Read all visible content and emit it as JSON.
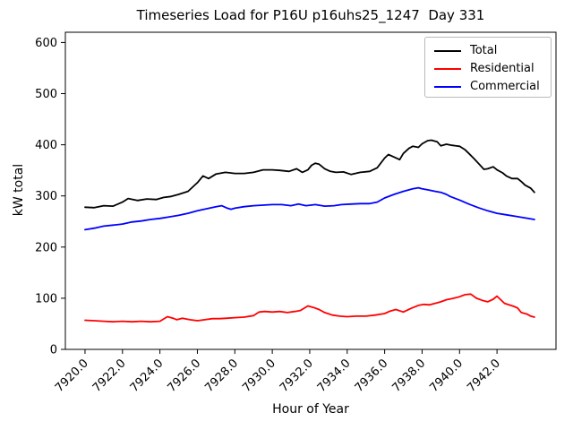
{
  "title": "Timeseries Load for P16U p16uhs25_1247  Day 331",
  "xlabel": "Hour of Year",
  "ylabel": "kW total",
  "legend": [
    {
      "label": "Total",
      "color": "#000000"
    },
    {
      "label": "Residential",
      "color": "#ff0000"
    },
    {
      "label": "Commercial",
      "color": "#0000ff"
    }
  ],
  "chart_data": {
    "type": "line",
    "title": "Timeseries Load for P16U p16uhs25_1247  Day 331",
    "xlabel": "Hour of Year",
    "ylabel": "kW total",
    "xlim": [
      7918.95,
      7945.15
    ],
    "ylim": [
      0,
      620
    ],
    "grid": false,
    "legend_position": "upper right",
    "x_ticks": [
      7920,
      7922,
      7924,
      7926,
      7928,
      7930,
      7932,
      7934,
      7936,
      7938,
      7940,
      7942
    ],
    "x_tick_labels": [
      "7920.0",
      "7922.0",
      "7924.0",
      "7926.0",
      "7928.0",
      "7930.0",
      "7932.0",
      "7934.0",
      "7936.0",
      "7938.0",
      "7940.0",
      "7942.0"
    ],
    "y_ticks": [
      0,
      100,
      200,
      300,
      400,
      500,
      600
    ],
    "y_tick_labels": [
      "0",
      "100",
      "200",
      "300",
      "400",
      "500",
      "600"
    ],
    "series": [
      {
        "name": "Total",
        "color": "#000000",
        "points": [
          [
            7920.0,
            278
          ],
          [
            7920.5,
            277
          ],
          [
            7921.0,
            281
          ],
          [
            7921.5,
            280
          ],
          [
            7922.0,
            288
          ],
          [
            7922.3,
            295
          ],
          [
            7922.8,
            291
          ],
          [
            7923.3,
            294
          ],
          [
            7923.8,
            293
          ],
          [
            7924.2,
            297
          ],
          [
            7924.6,
            299
          ],
          [
            7925.0,
            303
          ],
          [
            7925.5,
            309
          ],
          [
            7926.0,
            326
          ],
          [
            7926.3,
            339
          ],
          [
            7926.6,
            334
          ],
          [
            7927.0,
            343
          ],
          [
            7927.5,
            346
          ],
          [
            7928.0,
            344
          ],
          [
            7928.5,
            344
          ],
          [
            7929.0,
            346
          ],
          [
            7929.5,
            351
          ],
          [
            7930.0,
            351
          ],
          [
            7930.4,
            350
          ],
          [
            7930.9,
            348
          ],
          [
            7931.3,
            353
          ],
          [
            7931.6,
            346
          ],
          [
            7931.9,
            351
          ],
          [
            7932.1,
            360
          ],
          [
            7932.3,
            364
          ],
          [
            7932.5,
            362
          ],
          [
            7932.8,
            353
          ],
          [
            7933.1,
            348
          ],
          [
            7933.4,
            346
          ],
          [
            7933.8,
            347
          ],
          [
            7934.2,
            342
          ],
          [
            7934.7,
            346
          ],
          [
            7935.2,
            348
          ],
          [
            7935.6,
            355
          ],
          [
            7936.0,
            374
          ],
          [
            7936.2,
            381
          ],
          [
            7936.5,
            376
          ],
          [
            7936.8,
            371
          ],
          [
            7937.0,
            383
          ],
          [
            7937.3,
            393
          ],
          [
            7937.5,
            397
          ],
          [
            7937.8,
            395
          ],
          [
            7938.0,
            402
          ],
          [
            7938.3,
            408
          ],
          [
            7938.5,
            409
          ],
          [
            7938.8,
            406
          ],
          [
            7939.0,
            398
          ],
          [
            7939.3,
            401
          ],
          [
            7939.6,
            399
          ],
          [
            7940.0,
            397
          ],
          [
            7940.3,
            390
          ],
          [
            7940.5,
            383
          ],
          [
            7940.8,
            372
          ],
          [
            7941.0,
            364
          ],
          [
            7941.3,
            352
          ],
          [
            7941.5,
            353
          ],
          [
            7941.8,
            357
          ],
          [
            7942.0,
            351
          ],
          [
            7942.3,
            345
          ],
          [
            7942.5,
            339
          ],
          [
            7942.8,
            334
          ],
          [
            7943.1,
            334
          ],
          [
            7943.3,
            328
          ],
          [
            7943.5,
            321
          ],
          [
            7943.8,
            315
          ],
          [
            7944.0,
            307
          ]
        ]
      },
      {
        "name": "Residential",
        "color": "#ff0000",
        "points": [
          [
            7920.0,
            57
          ],
          [
            7920.5,
            56
          ],
          [
            7921.0,
            55
          ],
          [
            7921.5,
            54
          ],
          [
            7922.0,
            55
          ],
          [
            7922.5,
            54
          ],
          [
            7923.0,
            55
          ],
          [
            7923.5,
            54
          ],
          [
            7924.0,
            55
          ],
          [
            7924.4,
            64
          ],
          [
            7924.7,
            61
          ],
          [
            7924.9,
            58
          ],
          [
            7925.2,
            61
          ],
          [
            7925.6,
            58
          ],
          [
            7926.0,
            56
          ],
          [
            7926.4,
            58
          ],
          [
            7926.8,
            60
          ],
          [
            7927.2,
            60
          ],
          [
            7927.6,
            61
          ],
          [
            7928.0,
            62
          ],
          [
            7928.5,
            63
          ],
          [
            7929.0,
            66
          ],
          [
            7929.3,
            73
          ],
          [
            7929.6,
            74
          ],
          [
            7930.0,
            73
          ],
          [
            7930.4,
            74
          ],
          [
            7930.8,
            72
          ],
          [
            7931.2,
            74
          ],
          [
            7931.5,
            76
          ],
          [
            7931.9,
            85
          ],
          [
            7932.2,
            82
          ],
          [
            7932.5,
            78
          ],
          [
            7932.8,
            72
          ],
          [
            7933.2,
            67
          ],
          [
            7933.6,
            65
          ],
          [
            7934.0,
            64
          ],
          [
            7934.5,
            65
          ],
          [
            7935.0,
            65
          ],
          [
            7935.5,
            67
          ],
          [
            7936.0,
            70
          ],
          [
            7936.3,
            75
          ],
          [
            7936.6,
            78
          ],
          [
            7937.0,
            73
          ],
          [
            7937.4,
            80
          ],
          [
            7937.8,
            86
          ],
          [
            7938.1,
            88
          ],
          [
            7938.4,
            87
          ],
          [
            7938.7,
            90
          ],
          [
            7939.0,
            93
          ],
          [
            7939.3,
            97
          ],
          [
            7939.7,
            100
          ],
          [
            7940.0,
            103
          ],
          [
            7940.3,
            107
          ],
          [
            7940.6,
            108
          ],
          [
            7940.9,
            100
          ],
          [
            7941.2,
            96
          ],
          [
            7941.5,
            93
          ],
          [
            7941.8,
            98
          ],
          [
            7942.0,
            104
          ],
          [
            7942.4,
            90
          ],
          [
            7942.9,
            84
          ],
          [
            7943.1,
            81
          ],
          [
            7943.3,
            72
          ],
          [
            7943.6,
            69
          ],
          [
            7943.8,
            65
          ],
          [
            7944.0,
            63
          ]
        ]
      },
      {
        "name": "Commercial",
        "color": "#0000ff",
        "points": [
          [
            7920.0,
            234
          ],
          [
            7920.5,
            237
          ],
          [
            7921.0,
            241
          ],
          [
            7921.5,
            243
          ],
          [
            7922.0,
            245
          ],
          [
            7922.5,
            249
          ],
          [
            7923.0,
            251
          ],
          [
            7923.5,
            254
          ],
          [
            7924.0,
            256
          ],
          [
            7924.5,
            259
          ],
          [
            7925.0,
            262
          ],
          [
            7925.5,
            266
          ],
          [
            7926.0,
            271
          ],
          [
            7926.5,
            275
          ],
          [
            7927.0,
            279
          ],
          [
            7927.3,
            281
          ],
          [
            7927.6,
            276
          ],
          [
            7927.8,
            274
          ],
          [
            7928.0,
            276
          ],
          [
            7928.5,
            279
          ],
          [
            7929.0,
            281
          ],
          [
            7929.5,
            282
          ],
          [
            7930.0,
            283
          ],
          [
            7930.5,
            283
          ],
          [
            7931.0,
            281
          ],
          [
            7931.4,
            284
          ],
          [
            7931.8,
            281
          ],
          [
            7932.3,
            283
          ],
          [
            7932.8,
            280
          ],
          [
            7933.3,
            281
          ],
          [
            7933.7,
            283
          ],
          [
            7934.2,
            284
          ],
          [
            7934.7,
            285
          ],
          [
            7935.2,
            285
          ],
          [
            7935.6,
            288
          ],
          [
            7936.0,
            296
          ],
          [
            7936.5,
            303
          ],
          [
            7937.0,
            309
          ],
          [
            7937.5,
            314
          ],
          [
            7937.8,
            316
          ],
          [
            7938.0,
            314
          ],
          [
            7938.3,
            312
          ],
          [
            7938.7,
            309
          ],
          [
            7939.0,
            307
          ],
          [
            7939.3,
            303
          ],
          [
            7939.5,
            299
          ],
          [
            7940.0,
            292
          ],
          [
            7940.5,
            284
          ],
          [
            7941.0,
            277
          ],
          [
            7941.5,
            271
          ],
          [
            7942.0,
            266
          ],
          [
            7942.5,
            263
          ],
          [
            7943.0,
            260
          ],
          [
            7943.5,
            257
          ],
          [
            7944.0,
            254
          ]
        ]
      }
    ]
  }
}
